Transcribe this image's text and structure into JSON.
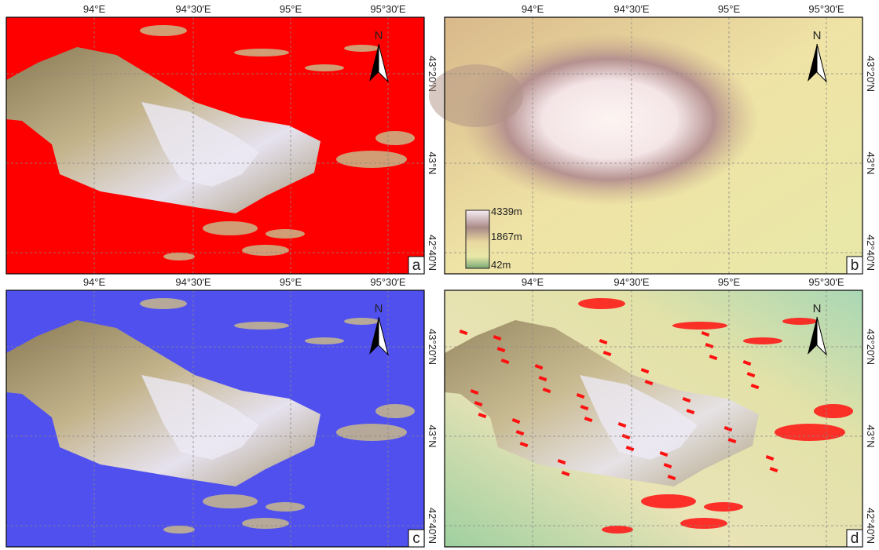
{
  "map": {
    "lon_labels": [
      "94°E",
      "94°30′E",
      "95°E",
      "95°30′E"
    ],
    "lat_labels": [
      "43°20′N",
      "43°N",
      "42°40′N"
    ],
    "north": "N",
    "panels": [
      {
        "label": "a"
      },
      {
        "label": "b"
      },
      {
        "label": "c"
      },
      {
        "label": "d"
      }
    ],
    "legend": {
      "max": "4339m",
      "mid": "1867m",
      "min": "42m"
    }
  }
}
